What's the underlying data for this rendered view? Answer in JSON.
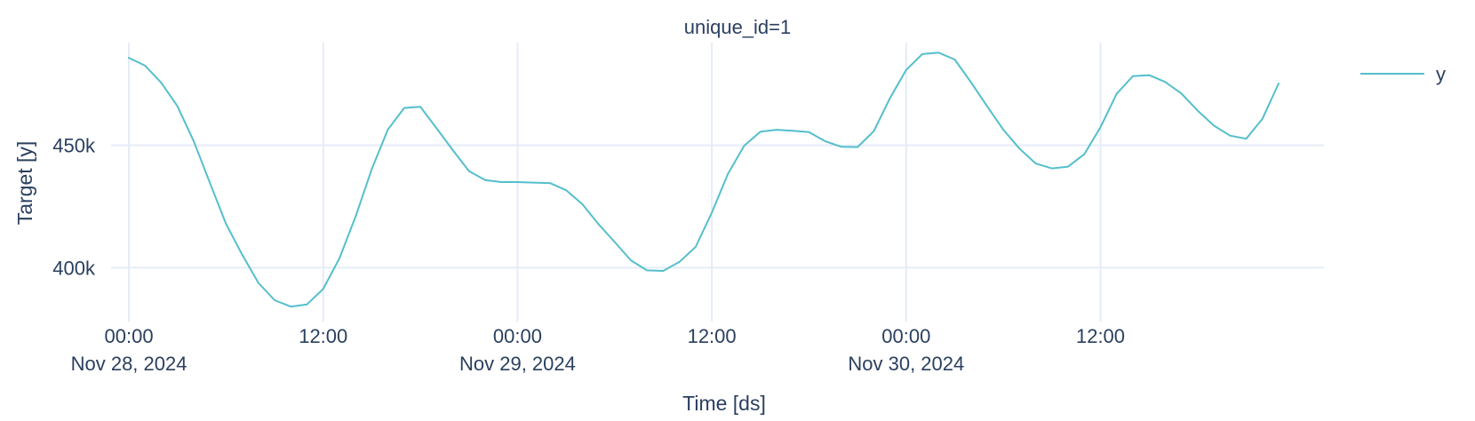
{
  "chart_data": {
    "type": "line",
    "title": "unique_id=1",
    "xlabel": "Time [ds]",
    "ylabel": "Target [y]",
    "x_ticks": [
      {
        "value": 0,
        "line1": "00:00",
        "line2": "Nov 28, 2024"
      },
      {
        "value": 12,
        "line1": "12:00",
        "line2": ""
      },
      {
        "value": 24,
        "line1": "00:00",
        "line2": "Nov 29, 2024"
      },
      {
        "value": 36,
        "line1": "12:00",
        "line2": ""
      },
      {
        "value": 48,
        "line1": "00:00",
        "line2": "Nov 30, 2024"
      },
      {
        "value": 60,
        "line1": "12:00",
        "line2": ""
      }
    ],
    "y_ticks": [
      {
        "value": 400000,
        "label": "400k"
      },
      {
        "value": 450000,
        "label": "450k"
      }
    ],
    "xlim": [
      -1.1,
      73.8
    ],
    "ylim": [
      378000,
      492000
    ],
    "grid": true,
    "legend_position": "right",
    "series": [
      {
        "name": "y",
        "color": "#54bfcb",
        "x": [
          0,
          1,
          2,
          3,
          4,
          5,
          6,
          7,
          8,
          9,
          10,
          11,
          12,
          13,
          14,
          15,
          16,
          17,
          18,
          19,
          20,
          21,
          22,
          23,
          24,
          25,
          26,
          27,
          28,
          29,
          30,
          31,
          32,
          33,
          34,
          35,
          36,
          37,
          38,
          39,
          40,
          41,
          42,
          43,
          44,
          45,
          46,
          47,
          48,
          49,
          50,
          51,
          52,
          53,
          54,
          55,
          56,
          57,
          58,
          59,
          60,
          61,
          62,
          63,
          64,
          65,
          66,
          67,
          68,
          69,
          70,
          71
        ],
        "values": [
          485800,
          482600,
          475600,
          466000,
          451800,
          434700,
          417900,
          405300,
          393800,
          386700,
          384100,
          385000,
          391300,
          403800,
          420900,
          440300,
          456500,
          465300,
          465800,
          457000,
          448100,
          439500,
          435800,
          435000,
          435000,
          434800,
          434600,
          431700,
          426000,
          417800,
          410500,
          403000,
          398900,
          398700,
          402400,
          408500,
          422500,
          438400,
          449900,
          455600,
          456400,
          456000,
          455400,
          451700,
          449400,
          449300,
          455800,
          469300,
          480800,
          487300,
          487900,
          485100,
          475800,
          466000,
          456400,
          448700,
          442600,
          440600,
          441300,
          446400,
          457400,
          471100,
          478300,
          478700,
          475900,
          471200,
          464200,
          458100,
          454000,
          452700,
          460800,
          475300
        ]
      }
    ]
  }
}
